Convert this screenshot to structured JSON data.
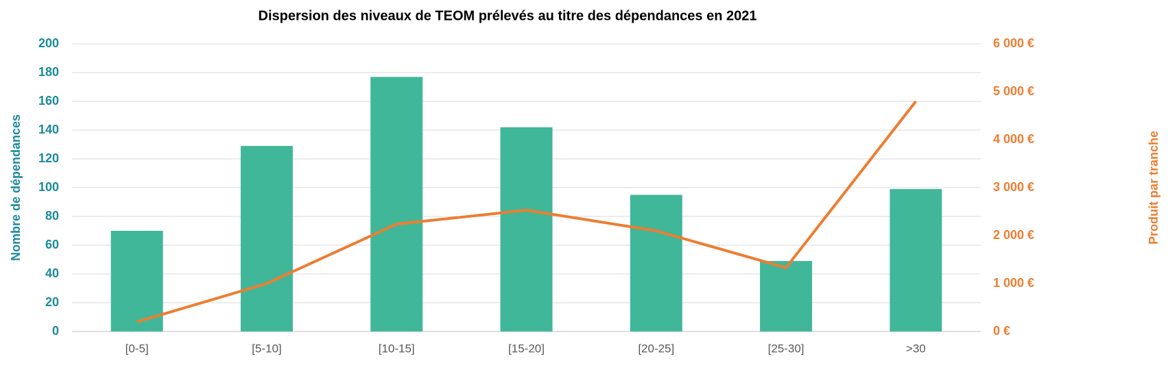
{
  "chart_data": {
    "type": "bar",
    "title": "Dispersion des niveaux de TEOM prélevés au titre des dépendances en 2021",
    "y_label": "Nombre de dépendances",
    "y2_label": "Produit par tranche",
    "categories": [
      "[0-5]",
      "[5-10]",
      "[10-15]",
      "[15-20]",
      "[20-25]",
      "[25-30]",
      ">30"
    ],
    "series": [
      {
        "type": "bar",
        "color": "#41b79a",
        "values": [
          70,
          129,
          177,
          142,
          95,
          49,
          99
        ]
      },
      {
        "type": "line",
        "color": "#ed7d31",
        "axis": "y2",
        "values": [
          200,
          1000,
          2240,
          2530,
          2100,
          1330,
          4800
        ]
      }
    ],
    "ylim": [
      0,
      200
    ],
    "yticks": [
      0,
      20,
      40,
      60,
      80,
      100,
      120,
      140,
      160,
      180,
      200
    ],
    "y2lim": [
      0,
      6000
    ],
    "y2ticks": [
      {
        "value": 0,
        "label": "0 €"
      },
      {
        "value": 1000,
        "label": "1 000 €"
      },
      {
        "value": 2000,
        "label": "2 000 €"
      },
      {
        "value": 3000,
        "label": "3 000 €"
      },
      {
        "value": 4000,
        "label": "4 000 €"
      },
      {
        "value": 5000,
        "label": "5 000 €"
      },
      {
        "value": 6000,
        "label": "6 000 €"
      }
    ],
    "grid": true
  }
}
